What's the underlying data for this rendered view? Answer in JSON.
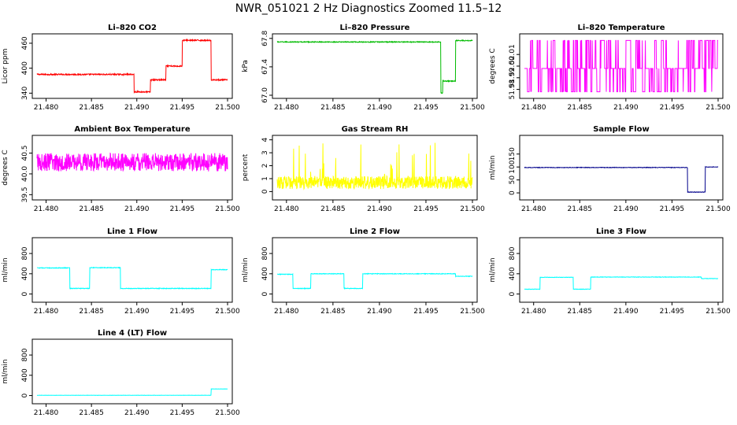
{
  "title": "NWR_051021  2 Hz Diagnostics Zoomed 11.5–12",
  "chart_data": [
    {
      "type": "line",
      "title": "Li–820 CO2",
      "ylabel": "Licor ppm",
      "color": "#ff0000",
      "xlim": [
        21.479,
        21.5
      ],
      "xticks": [
        21.48,
        21.485,
        21.49,
        21.495,
        21.5
      ],
      "xticklabels": [
        "21.480",
        "21.485",
        "21.490",
        "21.495",
        "21.500"
      ],
      "ylim": [
        335,
        475
      ],
      "yticks": [
        340,
        400,
        460
      ],
      "yticklabels": [
        "340",
        "400",
        "460"
      ],
      "steps": [
        [
          21.479,
          385
        ],
        [
          21.4897,
          343
        ],
        [
          21.4915,
          372
        ],
        [
          21.4932,
          405
        ],
        [
          21.495,
          467
        ],
        [
          21.4982,
          372
        ],
        [
          21.5,
          372
        ]
      ],
      "noise": 1.5
    },
    {
      "type": "line",
      "title": "Li–820 Pressure",
      "ylabel": "kPa",
      "color": "#00bb00",
      "xlim": [
        21.479,
        21.5
      ],
      "xticks": [
        21.48,
        21.485,
        21.49,
        21.495,
        21.5
      ],
      "xticklabels": [
        "21.480",
        "21.485",
        "21.490",
        "21.495",
        "21.500"
      ],
      "ylim": [
        67.0,
        67.82
      ],
      "yticks": [
        67.0,
        67.4,
        67.8
      ],
      "yticklabels": [
        "67.0",
        "67.4",
        "67.8"
      ],
      "steps": [
        [
          21.479,
          67.75
        ],
        [
          21.4966,
          67.03
        ],
        [
          21.4968,
          67.2
        ],
        [
          21.4982,
          67.77
        ],
        [
          21.5,
          67.77
        ]
      ],
      "noise": 0.006
    },
    {
      "type": "line",
      "title": "Li–820 Temperature",
      "ylabel": "degrees C",
      "color": "#ff00ff",
      "xlim": [
        21.479,
        21.5
      ],
      "xticks": [
        21.48,
        21.485,
        21.49,
        21.495,
        21.5
      ],
      "xticklabels": [
        "21.480",
        "21.485",
        "21.490",
        "21.495",
        "21.500"
      ],
      "ylim": [
        51.975,
        52.025
      ],
      "yticks": [
        51.98,
        51.99,
        52.0,
        52.01
      ],
      "yticklabels": [
        "51.98",
        "51.99",
        "52.00",
        "52.01"
      ],
      "levels": [
        51.978,
        51.998,
        52.022
      ],
      "switching": true
    },
    {
      "type": "line",
      "title": "Ambient Box Temperature",
      "ylabel": "degrees C",
      "color": "#ff00ff",
      "xlim": [
        21.479,
        21.5
      ],
      "xticks": [
        21.48,
        21.485,
        21.49,
        21.495,
        21.5
      ],
      "xticklabels": [
        "21.480",
        "21.485",
        "21.490",
        "21.495",
        "21.500"
      ],
      "ylim": [
        39.45,
        40.85
      ],
      "yticks": [
        39.5,
        40.0,
        40.5
      ],
      "yticklabels": [
        "39.5",
        "40.0",
        "40.5"
      ],
      "steps": [
        [
          21.479,
          40.28
        ],
        [
          21.5,
          40.28
        ]
      ],
      "noise": 0.22
    },
    {
      "type": "line",
      "title": "Gas Stream RH",
      "ylabel": "percent",
      "color": "#ffff00",
      "xlim": [
        21.479,
        21.5
      ],
      "xticks": [
        21.48,
        21.485,
        21.49,
        21.495,
        21.5
      ],
      "xticklabels": [
        "21.480",
        "21.485",
        "21.490",
        "21.495",
        "21.500"
      ],
      "ylim": [
        -0.4,
        4.1
      ],
      "yticks": [
        0,
        1,
        2,
        3,
        4
      ],
      "yticklabels": [
        "0",
        "1",
        "2",
        "3",
        "4"
      ],
      "steps": [
        [
          21.479,
          0.7
        ],
        [
          21.5,
          0.7
        ]
      ],
      "noise": 0.5,
      "spikes": 3.8
    },
    {
      "type": "line",
      "title": "Sample Flow",
      "ylabel": "ml/min",
      "color": "#00008b",
      "xlim": [
        21.479,
        21.5
      ],
      "xticks": [
        21.48,
        21.485,
        21.49,
        21.495,
        21.5
      ],
      "xticklabels": [
        "21.480",
        "21.485",
        "21.490",
        "21.495",
        "21.500"
      ],
      "ylim": [
        -15,
        210
      ],
      "yticks": [
        0,
        50,
        100,
        150
      ],
      "yticklabels": [
        "0",
        "50",
        "100",
        "150"
      ],
      "steps": [
        [
          21.479,
          98
        ],
        [
          21.4967,
          3
        ],
        [
          21.4986,
          100
        ],
        [
          21.5,
          100
        ]
      ],
      "noise": 1.0
    },
    {
      "type": "line",
      "title": "Line 1 Flow",
      "ylabel": "ml/min",
      "color": "#00ffff",
      "xlim": [
        21.479,
        21.5
      ],
      "xticks": [
        21.48,
        21.485,
        21.49,
        21.495,
        21.5
      ],
      "xticklabels": [
        "21.480",
        "21.485",
        "21.490",
        "21.495",
        "21.500"
      ],
      "ylim": [
        -100,
        1050
      ],
      "yticks": [
        0,
        400,
        800
      ],
      "yticklabels": [
        "0",
        "400",
        "800"
      ],
      "steps": [
        [
          21.479,
          515
        ],
        [
          21.4826,
          110
        ],
        [
          21.4848,
          520
        ],
        [
          21.4882,
          110
        ],
        [
          21.4982,
          480
        ],
        [
          21.5,
          480
        ]
      ],
      "noise": 6
    },
    {
      "type": "line",
      "title": "Line 2 Flow",
      "ylabel": "ml/min",
      "color": "#00ffff",
      "xlim": [
        21.479,
        21.5
      ],
      "xticks": [
        21.48,
        21.485,
        21.49,
        21.495,
        21.5
      ],
      "xticklabels": [
        "21.480",
        "21.485",
        "21.490",
        "21.495",
        "21.500"
      ],
      "ylim": [
        -100,
        1050
      ],
      "yticks": [
        0,
        400,
        800
      ],
      "yticklabels": [
        "0",
        "400",
        "800"
      ],
      "steps": [
        [
          21.479,
          390
        ],
        [
          21.4807,
          110
        ],
        [
          21.4826,
          400
        ],
        [
          21.4862,
          110
        ],
        [
          21.4882,
          400
        ],
        [
          21.4982,
          350
        ],
        [
          21.5,
          350
        ]
      ],
      "noise": 6
    },
    {
      "type": "line",
      "title": "Line 3 Flow",
      "ylabel": "ml/min",
      "color": "#00ffff",
      "xlim": [
        21.479,
        21.5
      ],
      "xticks": [
        21.48,
        21.485,
        21.49,
        21.495,
        21.5
      ],
      "xticklabels": [
        "21.480",
        "21.485",
        "21.490",
        "21.495",
        "21.500"
      ],
      "ylim": [
        -100,
        1050
      ],
      "yticks": [
        0,
        400,
        800
      ],
      "yticklabels": [
        "0",
        "400",
        "800"
      ],
      "steps": [
        [
          21.479,
          95
        ],
        [
          21.4807,
          330
        ],
        [
          21.4843,
          95
        ],
        [
          21.4862,
          335
        ],
        [
          21.4982,
          305
        ],
        [
          21.5,
          305
        ]
      ],
      "noise": 4
    },
    {
      "type": "line",
      "title": "Line 4 (LT) Flow",
      "ylabel": "ml/min",
      "color": "#00ffff",
      "xlim": [
        21.479,
        21.5
      ],
      "xticks": [
        21.48,
        21.485,
        21.49,
        21.495,
        21.5
      ],
      "xticklabels": [
        "21.480",
        "21.485",
        "21.490",
        "21.495",
        "21.500"
      ],
      "ylim": [
        -100,
        1050
      ],
      "yticks": [
        0,
        400,
        800
      ],
      "yticklabels": [
        "0",
        "400",
        "800"
      ],
      "steps": [
        [
          21.479,
          5
        ],
        [
          21.4982,
          130
        ],
        [
          21.5,
          130
        ]
      ],
      "noise": 2
    }
  ]
}
